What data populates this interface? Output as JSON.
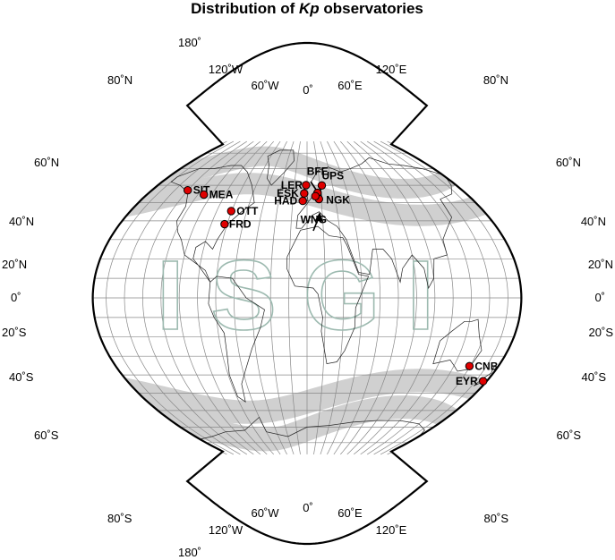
{
  "title": {
    "prefix": "Distribution of ",
    "italic": "Kp",
    "suffix": " observatories"
  },
  "watermark": "ISGI",
  "lon_labels": {
    "edge_180_top": "180˚",
    "w120_top": "120˚W",
    "w60_top": "60˚W",
    "zero_top": "0˚",
    "e60_top": "60˚E",
    "e120_top": "120˚E",
    "edge_180_bottom": "180˚",
    "w120_bottom": "120˚W",
    "w60_bottom": "60˚W",
    "zero_bottom": "0˚",
    "e60_bottom": "60˚E",
    "e120_bottom": "120˚E"
  },
  "lat_labels": {
    "n80": "80˚N",
    "n60": "60˚N",
    "n40": "40˚N",
    "n20": "20˚N",
    "eq": "0˚",
    "s20": "20˚S",
    "s40": "40˚S",
    "s60": "60˚S",
    "s80": "80˚S"
  },
  "stations": [
    {
      "code": "SIT",
      "lon": -135.3,
      "lat": 57.1
    },
    {
      "code": "MEA",
      "lon": -113.4,
      "lat": 54.6
    },
    {
      "code": "OTT",
      "lon": -75.6,
      "lat": 45.4
    },
    {
      "code": "FRD",
      "lon": -77.4,
      "lat": 38.2
    },
    {
      "code": "LER",
      "lon": -1.2,
      "lat": 60.1
    },
    {
      "code": "ESK",
      "lon": -3.2,
      "lat": 55.3
    },
    {
      "code": "HAD",
      "lon": -4.5,
      "lat": 51.0
    },
    {
      "code": "BFE",
      "lon": 11.7,
      "lat": 55.6
    },
    {
      "code": "UPS",
      "lon": 17.4,
      "lat": 59.9
    },
    {
      "code": "NGK",
      "lon": 12.7,
      "lat": 52.1
    },
    {
      "code": "WNG",
      "lon": 9.1,
      "lat": 53.7
    },
    {
      "code": "CNB",
      "lon": 149.4,
      "lat": -35.3
    },
    {
      "code": "EYR",
      "lon": 172.4,
      "lat": -43.4
    }
  ],
  "colors": {
    "station": "#e00000",
    "band": "#d0d0d0",
    "watermark": "#9dbab0",
    "grid": "#888888"
  }
}
